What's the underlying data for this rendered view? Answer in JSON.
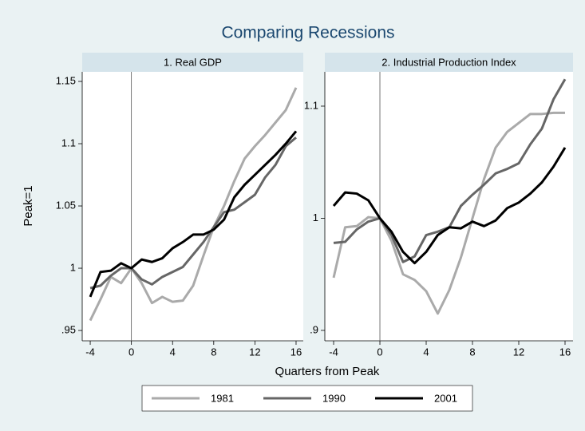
{
  "figure": {
    "title": "Comparing Recessions",
    "xlabel": "Quarters from Peak",
    "ylabel": "Peak=1"
  },
  "chart_data": [
    {
      "type": "line",
      "title": "1. Real GDP",
      "x": [
        -4,
        -3,
        -2,
        -1,
        0,
        1,
        2,
        3,
        4,
        5,
        6,
        7,
        8,
        9,
        10,
        11,
        12,
        13,
        14,
        15,
        16
      ],
      "series": [
        {
          "name": "1981",
          "color": "#aaaaaa",
          "values": [
            0.958,
            0.975,
            0.993,
            0.988,
            1.0,
            0.988,
            0.972,
            0.977,
            0.973,
            0.974,
            0.986,
            1.01,
            1.033,
            1.05,
            1.07,
            1.088,
            1.098,
            1.107,
            1.117,
            1.127,
            1.145
          ]
        },
        {
          "name": "1990",
          "color": "#666666",
          "values": [
            0.984,
            0.986,
            0.994,
            1.0,
            1.0,
            0.991,
            0.987,
            0.993,
            0.997,
            1.001,
            1.011,
            1.021,
            1.033,
            1.045,
            1.047,
            1.053,
            1.059,
            1.073,
            1.083,
            1.098,
            1.105
          ]
        },
        {
          "name": "2001",
          "color": "#000000",
          "values": [
            0.977,
            0.997,
            0.998,
            1.004,
            1.0,
            1.007,
            1.005,
            1.008,
            1.016,
            1.021,
            1.027,
            1.027,
            1.031,
            1.039,
            1.057,
            1.067,
            1.075,
            1.083,
            1.091,
            1.1,
            1.11
          ]
        }
      ],
      "xlim": [
        -4.78,
        16.7
      ],
      "xticks": [
        -4,
        0,
        4,
        8,
        12,
        16
      ],
      "ylim": [
        0.9417,
        1.1577
      ],
      "yticks": [
        {
          "value": 0.95,
          "label": ".95"
        },
        1,
        1.05,
        1.1,
        1.15
      ],
      "xline": 0,
      "grid": false
    },
    {
      "type": "line",
      "title": "2. Industrial Production Index",
      "x": [
        -4,
        -3,
        -2,
        -1,
        0,
        1,
        2,
        3,
        4,
        5,
        6,
        7,
        8,
        9,
        10,
        11,
        12,
        13,
        14,
        15,
        16
      ],
      "series": [
        {
          "name": "1981",
          "color": "#aaaaaa",
          "values": [
            0.947,
            0.992,
            0.993,
            1.001,
            1.0,
            0.98,
            0.95,
            0.945,
            0.935,
            0.915,
            0.936,
            0.965,
            1.0,
            1.035,
            1.063,
            1.077,
            1.085,
            1.093,
            1.093,
            1.094,
            1.094
          ]
        },
        {
          "name": "1990",
          "color": "#666666",
          "values": [
            0.978,
            0.979,
            0.99,
            0.997,
            1.0,
            0.985,
            0.961,
            0.966,
            0.985,
            0.988,
            0.992,
            1.011,
            1.021,
            1.03,
            1.04,
            1.044,
            1.049,
            1.066,
            1.08,
            1.106,
            1.124
          ]
        },
        {
          "name": "2001",
          "color": "#000000",
          "values": [
            1.011,
            1.023,
            1.022,
            1.016,
            1.0,
            0.988,
            0.97,
            0.96,
            0.97,
            0.985,
            0.992,
            0.991,
            0.997,
            0.993,
            0.998,
            1.009,
            1.014,
            1.022,
            1.032,
            1.046,
            1.063
          ]
        }
      ],
      "xlim": [
        -4.76,
        16.69
      ],
      "xticks": [
        -4,
        0,
        4,
        8,
        12,
        16
      ],
      "ylim": [
        0.8907,
        1.1306
      ],
      "yticks": [
        {
          "value": 0.9,
          "label": ".9"
        },
        1,
        {
          "value": 1.1,
          "label": "1.1"
        }
      ],
      "xline": 0,
      "grid": false
    }
  ]
}
